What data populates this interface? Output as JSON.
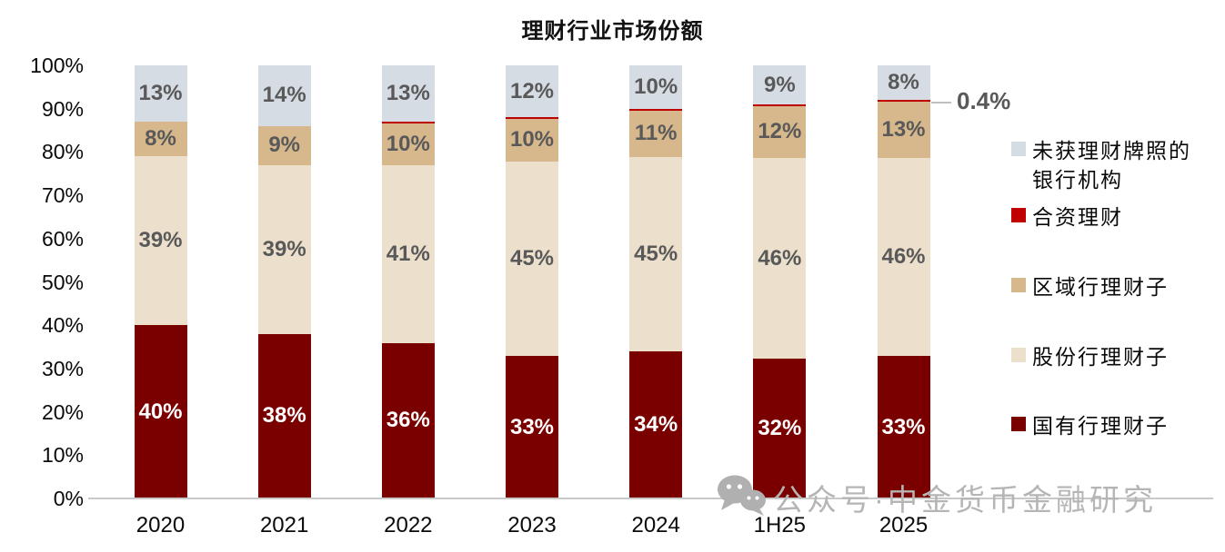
{
  "chart_data": {
    "type": "bar",
    "stacked": true,
    "title": "理财行业市场份额",
    "categories": [
      "2020",
      "2021",
      "2022",
      "2023",
      "2024",
      "1H25",
      "2025"
    ],
    "series": [
      {
        "name": "国有行理财子",
        "color": "#7a0000",
        "label_color": "#ffffff",
        "values": [
          40,
          38,
          36,
          33,
          34,
          32,
          33
        ]
      },
      {
        "name": "股份行理财子",
        "color": "#ece0cd",
        "label_color": "#595959",
        "values": [
          39,
          39,
          41,
          45,
          45,
          46,
          46
        ]
      },
      {
        "name": "区域行理财子",
        "color": "#d6b88c",
        "label_color": "#595959",
        "values": [
          8,
          9,
          10,
          10,
          11,
          12,
          13
        ]
      },
      {
        "name": "合资理财",
        "color": "#c00000",
        "show_labels": false,
        "values": [
          0,
          0,
          0.2,
          0.3,
          0.3,
          0.3,
          0.4
        ]
      },
      {
        "name": "未获理财牌照的银行机构",
        "legend_label": "未获理财牌照的\n银行机构",
        "color": "#d6dce4",
        "label_color": "#595959",
        "values": [
          13,
          14,
          13,
          12,
          10,
          9,
          8
        ]
      }
    ],
    "y_ticks": [
      "0%",
      "10%",
      "20%",
      "30%",
      "40%",
      "50%",
      "60%",
      "70%",
      "80%",
      "90%",
      "100%"
    ],
    "ylim": [
      0,
      100
    ],
    "grid": false,
    "legend_position": "right",
    "annotation": {
      "text": "0.4%",
      "series": "合资理财",
      "category": "2025"
    }
  },
  "watermark": {
    "icon": "wechat-icon",
    "text": "公众号·中金货币金融研究"
  }
}
